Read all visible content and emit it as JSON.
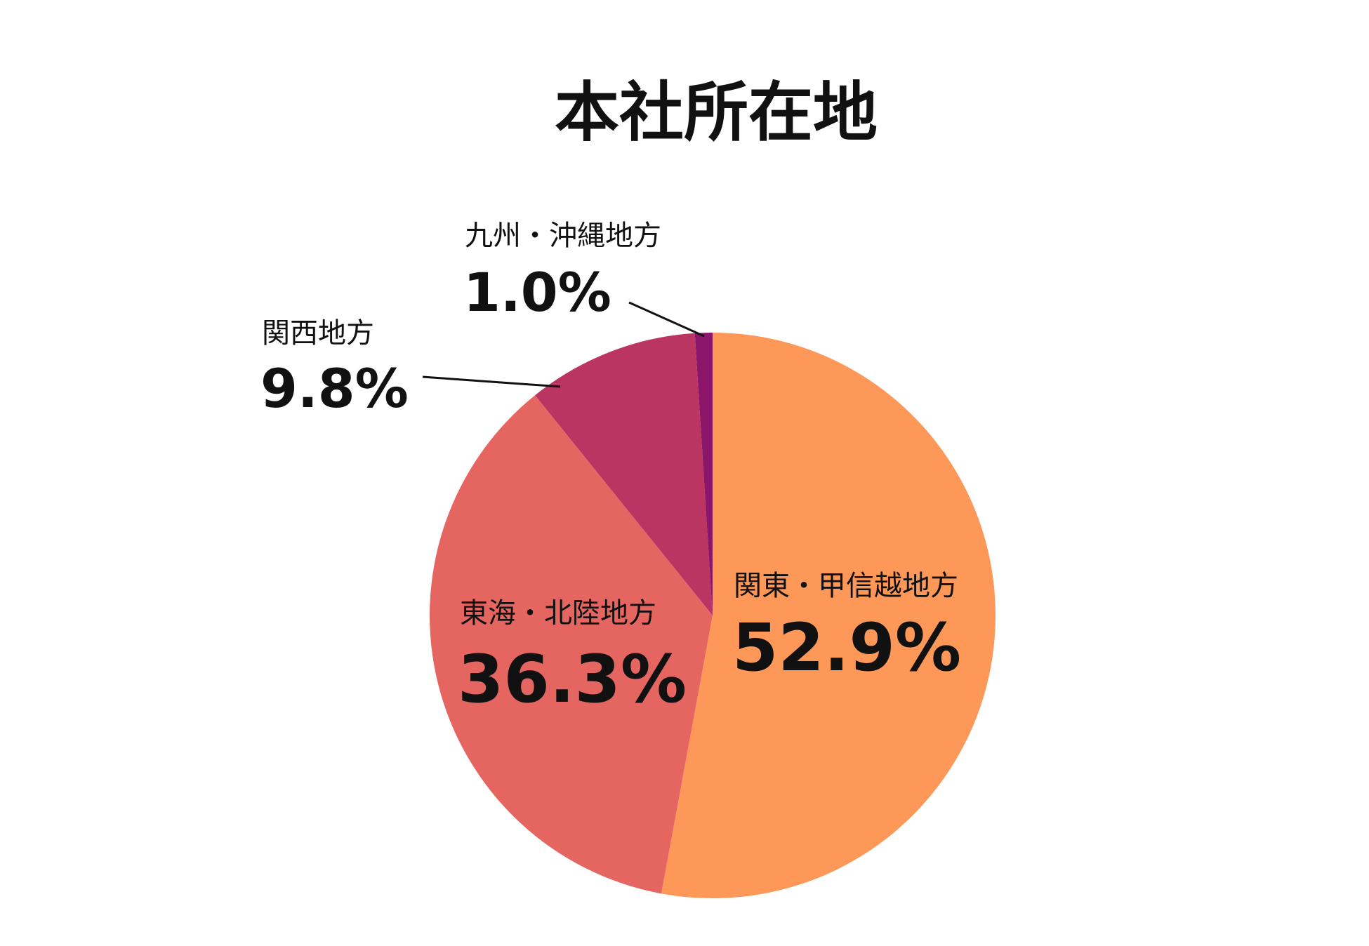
{
  "chart_data": {
    "type": "pie",
    "title": "本社所在地",
    "slices": [
      {
        "label": "関東・甲信越地方",
        "value": 52.9,
        "value_text": "52.9%",
        "color": "#FD9859"
      },
      {
        "label": "東海・北陸地方",
        "value": 36.3,
        "value_text": "36.3%",
        "color": "#E56661"
      },
      {
        "label": "関西地方",
        "value": 9.8,
        "value_text": "9.8%",
        "color": "#BB3562"
      },
      {
        "label": "九州・沖縄地方",
        "value": 1.0,
        "value_text": "1.0%",
        "color": "#8B1568"
      }
    ],
    "start_angle": "12 o'clock",
    "direction": "clockwise"
  }
}
